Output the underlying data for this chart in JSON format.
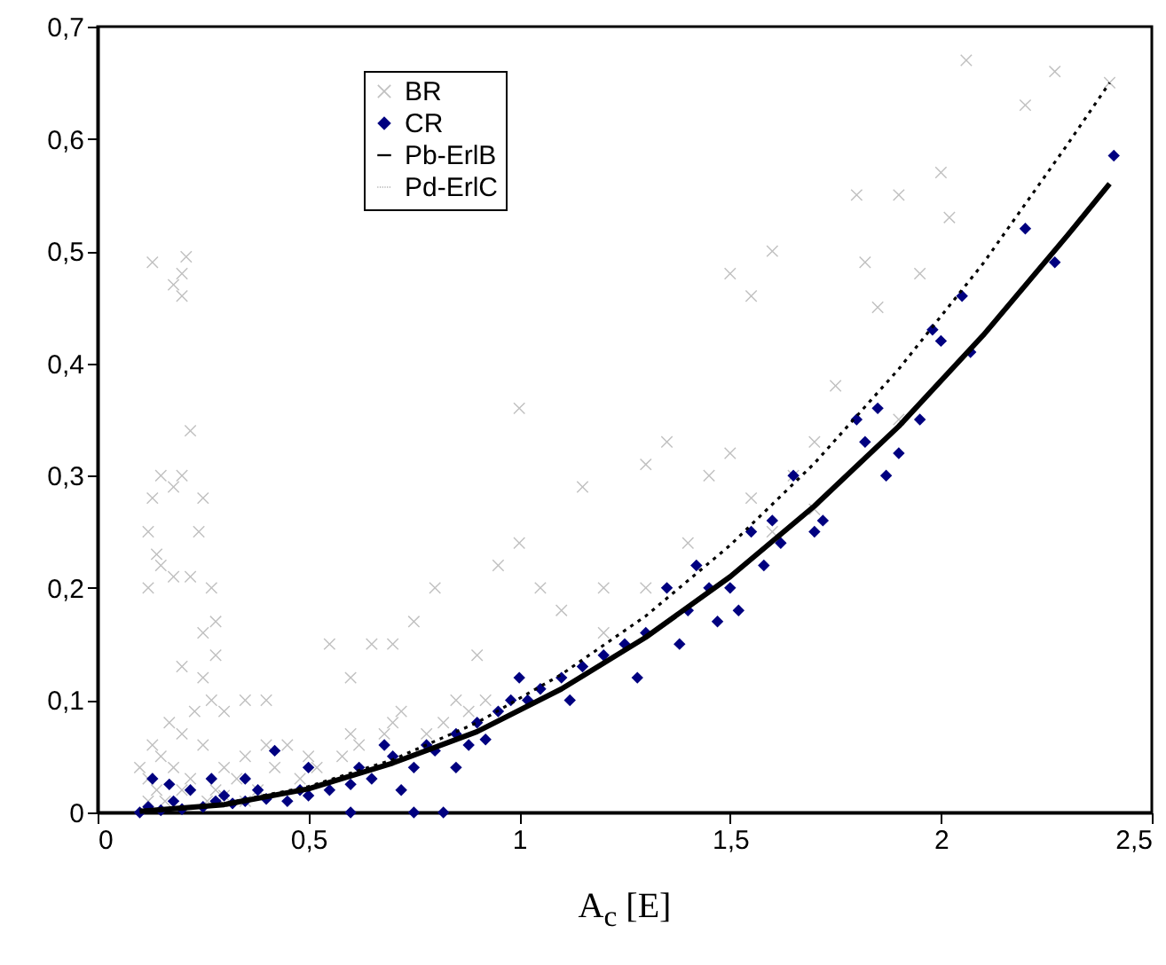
{
  "chart_data": {
    "type": "scatter",
    "xlabel": "A$_{c}$ [E]",
    "xlim": [
      0,
      2.5
    ],
    "ylim": [
      0,
      0.7
    ],
    "xticks": [
      0,
      {
        "value": 0.5,
        "label": "0,5"
      },
      1,
      {
        "value": 1.5,
        "label": "1,5"
      },
      2,
      {
        "value": 2.5,
        "label": "2,5"
      }
    ],
    "yticks": [
      0,
      {
        "value": 0.1,
        "label": "0,1"
      },
      {
        "value": 0.2,
        "label": "0,2"
      },
      {
        "value": 0.3,
        "label": "0,3"
      },
      {
        "value": 0.4,
        "label": "0,4"
      },
      {
        "value": 0.5,
        "label": "0,5"
      },
      {
        "value": 0.6,
        "label": "0,6"
      },
      {
        "value": 0.7,
        "label": "0,7"
      }
    ],
    "grid": false,
    "legend": "top left",
    "series": [
      {
        "name": "BR",
        "type": "scatter",
        "marker": "cross",
        "color": "#c0c0c0",
        "x": [
          0.13,
          0.18,
          0.2,
          0.21,
          0.2,
          0.22,
          0.15,
          0.13,
          0.12,
          0.14,
          0.18,
          0.2,
          0.25,
          0.24,
          0.15,
          0.22,
          0.27,
          0.25,
          0.28,
          0.12,
          0.18,
          0.28,
          0.2,
          0.25,
          0.3,
          0.35,
          0.4,
          0.45,
          0.55,
          0.6,
          0.65,
          0.7,
          0.75,
          0.8,
          1.0,
          0.95,
          1.0,
          1.05,
          1.1,
          1.15,
          1.2,
          1.3,
          1.35,
          1.4,
          1.45,
          1.5,
          1.55,
          1.6,
          1.5,
          1.55,
          1.6,
          1.65,
          1.7,
          1.75,
          1.8,
          1.85,
          1.82,
          1.9,
          1.95,
          2.0,
          2.02,
          2.06,
          2.2,
          2.27,
          2.4,
          1.9,
          1.7,
          1.3,
          1.2,
          0.9,
          0.85,
          0.7,
          0.6,
          0.5,
          0.4,
          0.35,
          0.3,
          0.25,
          0.2,
          0.15,
          0.12,
          0.14,
          0.18,
          0.22,
          0.28,
          0.33,
          0.38,
          0.42,
          0.48,
          0.52,
          0.58,
          0.62,
          0.68,
          0.72,
          0.78,
          0.82,
          0.88,
          0.92,
          0.12,
          0.16,
          0.2,
          0.26,
          0.3,
          0.35,
          0.1,
          0.13,
          0.17,
          0.23,
          0.27
        ],
        "values": [
          0.49,
          0.47,
          0.48,
          0.495,
          0.46,
          0.34,
          0.3,
          0.28,
          0.25,
          0.23,
          0.29,
          0.3,
          0.28,
          0.25,
          0.22,
          0.21,
          0.2,
          0.16,
          0.17,
          0.2,
          0.21,
          0.14,
          0.13,
          0.12,
          0.09,
          0.1,
          0.1,
          0.06,
          0.15,
          0.12,
          0.15,
          0.15,
          0.17,
          0.2,
          0.36,
          0.22,
          0.24,
          0.2,
          0.18,
          0.29,
          0.2,
          0.31,
          0.33,
          0.24,
          0.3,
          0.48,
          0.46,
          0.5,
          0.32,
          0.28,
          0.25,
          0.3,
          0.33,
          0.38,
          0.55,
          0.45,
          0.49,
          0.55,
          0.48,
          0.57,
          0.53,
          0.67,
          0.63,
          0.66,
          0.65,
          0.35,
          0.27,
          0.2,
          0.16,
          0.14,
          0.1,
          0.08,
          0.07,
          0.05,
          0.06,
          0.05,
          0.04,
          0.06,
          0.07,
          0.05,
          0.03,
          0.02,
          0.04,
          0.03,
          0.02,
          0.03,
          0.02,
          0.04,
          0.03,
          0.04,
          0.05,
          0.06,
          0.07,
          0.09,
          0.07,
          0.08,
          0.09,
          0.1,
          0.01,
          0.01,
          0.02,
          0.01,
          0.015,
          0.01,
          0.04,
          0.06,
          0.08,
          0.09,
          0.1
        ]
      },
      {
        "name": "CR",
        "type": "scatter",
        "marker": "diamond",
        "color": "#000080",
        "x": [
          0.1,
          0.12,
          0.15,
          0.18,
          0.2,
          0.22,
          0.25,
          0.28,
          0.3,
          0.32,
          0.35,
          0.38,
          0.4,
          0.42,
          0.45,
          0.48,
          0.5,
          0.55,
          0.6,
          0.62,
          0.65,
          0.7,
          0.72,
          0.75,
          0.78,
          0.8,
          0.82,
          0.85,
          0.88,
          0.9,
          0.92,
          0.95,
          0.98,
          1.0,
          1.02,
          1.05,
          1.1,
          1.12,
          1.15,
          1.2,
          1.25,
          1.28,
          1.3,
          1.35,
          1.38,
          1.4,
          1.42,
          1.45,
          1.47,
          1.5,
          1.52,
          1.55,
          1.58,
          1.6,
          1.62,
          1.65,
          1.7,
          1.72,
          1.8,
          1.82,
          1.85,
          1.87,
          1.9,
          1.95,
          1.98,
          2.0,
          2.05,
          2.07,
          2.2,
          2.27,
          2.41,
          0.13,
          0.17,
          0.27,
          0.35,
          0.5,
          0.68,
          0.85,
          0.75,
          0.6
        ],
        "values": [
          0,
          0.005,
          0.002,
          0.01,
          0.003,
          0.02,
          0.005,
          0.01,
          0.015,
          0.008,
          0.01,
          0.02,
          0.012,
          0.055,
          0.01,
          0.02,
          0.015,
          0.02,
          0.025,
          0.04,
          0.03,
          0.05,
          0.02,
          0.04,
          0.06,
          0.055,
          0,
          0.07,
          0.06,
          0.08,
          0.065,
          0.09,
          0.1,
          0.12,
          0.1,
          0.11,
          0.12,
          0.1,
          0.13,
          0.14,
          0.15,
          0.12,
          0.16,
          0.2,
          0.15,
          0.18,
          0.22,
          0.2,
          0.17,
          0.2,
          0.18,
          0.25,
          0.22,
          0.26,
          0.24,
          0.3,
          0.25,
          0.26,
          0.35,
          0.33,
          0.36,
          0.3,
          0.32,
          0.35,
          0.43,
          0.42,
          0.46,
          0.41,
          0.52,
          0.49,
          0.585,
          0.03,
          0.025,
          0.03,
          0.03,
          0.04,
          0.06,
          0.04,
          0,
          0
        ]
      },
      {
        "name": "Pb-ErlB",
        "type": "line",
        "line_style": "solid",
        "color": "#000000",
        "x": [
          0.1,
          0.3,
          0.5,
          0.7,
          0.9,
          1.1,
          1.3,
          1.5,
          1.7,
          1.9,
          2.1,
          2.3,
          2.4
        ],
        "values": [
          0.001,
          0.007,
          0.021,
          0.044,
          0.072,
          0.11,
          0.156,
          0.21,
          0.273,
          0.344,
          0.425,
          0.514,
          0.56
        ]
      },
      {
        "name": "Pd-ErlC",
        "type": "line",
        "line_style": "dotted",
        "color": "#000000",
        "x": [
          0.1,
          0.3,
          0.5,
          0.7,
          0.9,
          1.1,
          1.3,
          1.5,
          1.7,
          1.9,
          2.1,
          2.3,
          2.4
        ],
        "values": [
          0.001,
          0.008,
          0.023,
          0.047,
          0.08,
          0.123,
          0.175,
          0.238,
          0.311,
          0.395,
          0.489,
          0.595,
          0.65
        ]
      }
    ]
  }
}
